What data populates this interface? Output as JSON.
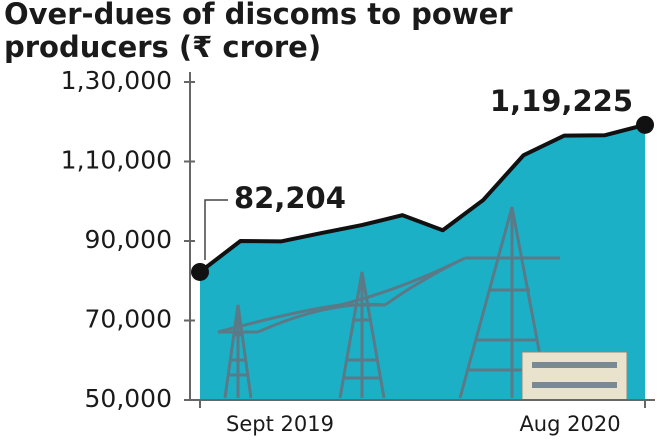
{
  "chart_data": {
    "type": "area",
    "title": "Over-dues of discoms to power producers (₹ crore)",
    "categories": [
      "Sept 2019",
      null,
      null,
      null,
      null,
      null,
      null,
      null,
      null,
      null,
      null,
      "Aug 2020"
    ],
    "values": [
      82204,
      90000,
      89900,
      92000,
      94000,
      96500,
      92700,
      100300,
      111600,
      116500,
      116600,
      119225
    ],
    "value_labels": [
      "82,204",
      null,
      null,
      null,
      null,
      null,
      null,
      null,
      null,
      null,
      null,
      "1,19,225"
    ],
    "color": "#1cb0c6",
    "line_color": "#111111",
    "ylim": [
      50000,
      130000
    ],
    "yticks": [
      {
        "value": 50000,
        "label": "50,000"
      },
      {
        "value": 70000,
        "label": "70,000"
      },
      {
        "value": 90000,
        "label": "90,000"
      },
      {
        "value": 110000,
        "label": "1,10,000"
      },
      {
        "value": 130000,
        "label": "1,30,000"
      }
    ]
  }
}
